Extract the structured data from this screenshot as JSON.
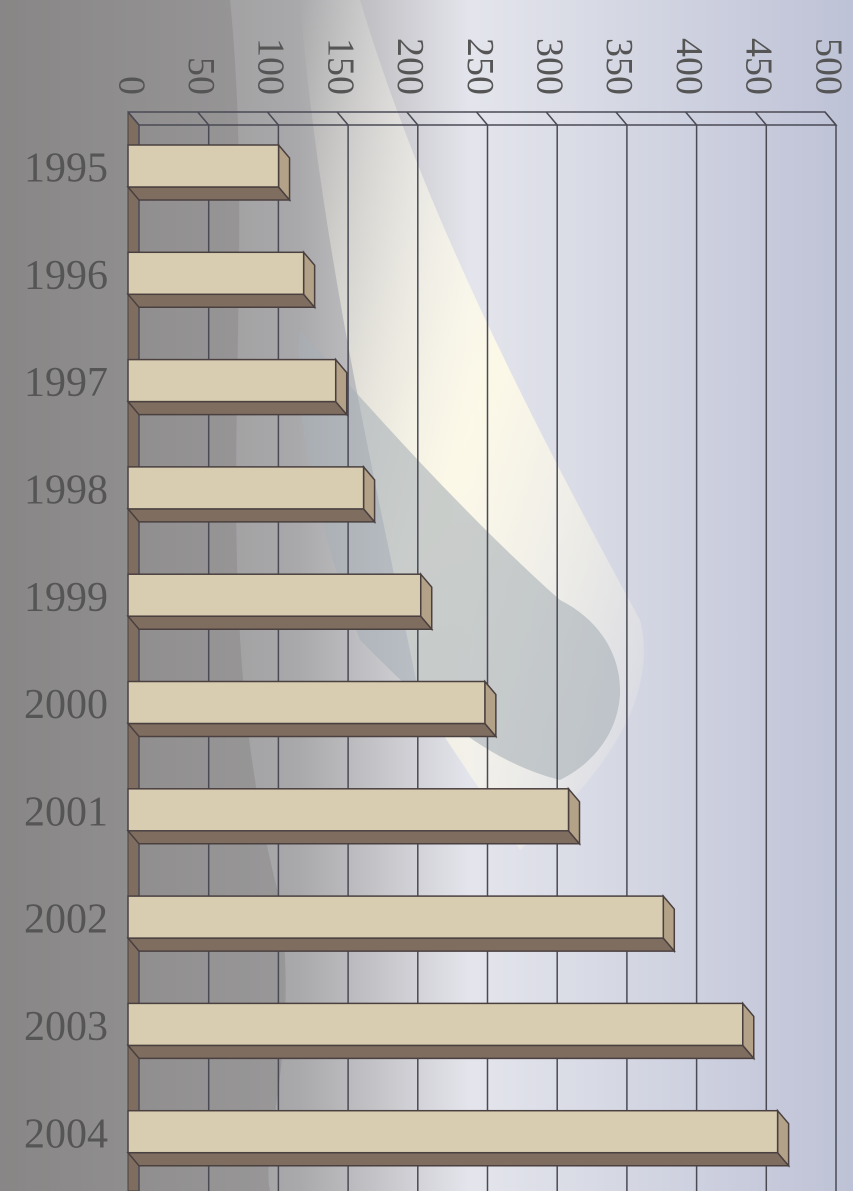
{
  "chart_data": {
    "type": "bar",
    "orientation": "horizontal",
    "categories": [
      "1995",
      "1996",
      "1997",
      "1998",
      "1999",
      "2000",
      "2001",
      "2002",
      "2003",
      "2004"
    ],
    "values": [
      108,
      126,
      149,
      169,
      210,
      256,
      316,
      384,
      441,
      466
    ],
    "color": "#d8cdb0",
    "xlim": [
      0,
      500
    ],
    "xticks": [
      0,
      50,
      100,
      150,
      200,
      250,
      300,
      350,
      400,
      450,
      500
    ],
    "grid": true
  }
}
